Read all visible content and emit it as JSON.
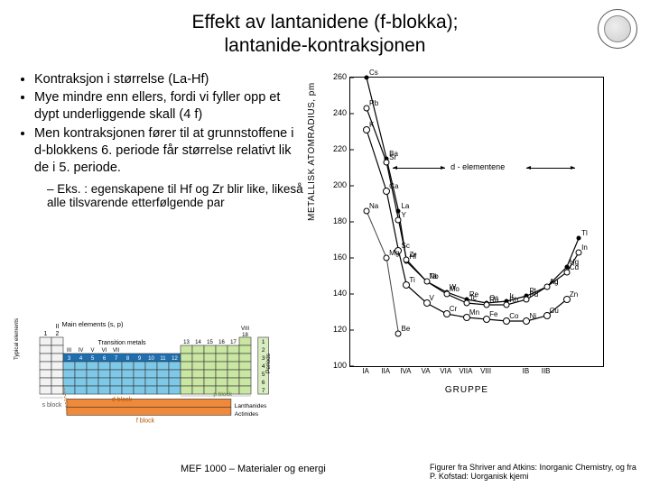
{
  "title_line1": "Effekt av lantanidene (f-blokka);",
  "title_line2": "lantanide-kontraksjonen",
  "bullets": [
    "Kontraksjon i størrelse (La-Hf)",
    "Mye mindre enn ellers, fordi vi fyller opp et dypt underliggende skall (4 f)",
    "Men kontraksjonen fører til at grunnstoffene i d-blokkens 6. periode får størrelse relativt lik de i 5. periode."
  ],
  "sub_bullet": "Eks. : egenskapene til Hf og Zr blir like, likeså alle tilsvarende etterfølgende par",
  "chart": {
    "ylabel": "METALLISK ATOMRADIUS, pm",
    "xlabel": "GRUPPE",
    "ymin": 100,
    "ymax": 260,
    "ytick_step": 20,
    "xticks": [
      "IA",
      "IIA",
      "IVA",
      "VA",
      "VIA",
      "VIIA",
      "VIII",
      "",
      "IB",
      "IIB"
    ],
    "d_element_label": "d - elementene",
    "series": [
      {
        "name": "period6",
        "style": "filled",
        "points": [
          {
            "x": 0,
            "y": 260,
            "label": "Cs"
          },
          {
            "x": 1,
            "y": 215,
            "label": "Ba"
          },
          {
            "x": 1.6,
            "y": 186,
            "label": "La"
          },
          {
            "x": 2,
            "y": 158,
            "label": "Hf"
          },
          {
            "x": 3,
            "y": 147,
            "label": "Ta"
          },
          {
            "x": 4,
            "y": 141,
            "label": "W"
          },
          {
            "x": 5,
            "y": 137,
            "label": "Re"
          },
          {
            "x": 6,
            "y": 135,
            "label": "Os"
          },
          {
            "x": 7,
            "y": 136,
            "label": "Ir"
          },
          {
            "x": 8,
            "y": 139,
            "label": "Pt"
          },
          {
            "x": 9,
            "y": 144,
            "label": "Au"
          },
          {
            "x": 10,
            "y": 155,
            "label": "Hg"
          },
          {
            "x": 10.6,
            "y": 171,
            "label": "Tl"
          }
        ]
      },
      {
        "name": "period5",
        "style": "open",
        "points": [
          {
            "x": 0,
            "y": 243,
            "label": "Rb"
          },
          {
            "x": 1,
            "y": 213,
            "label": "Sr"
          },
          {
            "x": 1.6,
            "y": 181,
            "label": "Y"
          },
          {
            "x": 2,
            "y": 159,
            "label": "Zr"
          },
          {
            "x": 3,
            "y": 147,
            "label": "Nb"
          },
          {
            "x": 4,
            "y": 140,
            "label": "Mo"
          },
          {
            "x": 5,
            "y": 135,
            "label": "Tc"
          },
          {
            "x": 6,
            "y": 134,
            "label": "Ru"
          },
          {
            "x": 7,
            "y": 134,
            "label": "Rh"
          },
          {
            "x": 8,
            "y": 137,
            "label": "Pd"
          },
          {
            "x": 9,
            "y": 144,
            "label": "Ag"
          },
          {
            "x": 10,
            "y": 152,
            "label": "Cd"
          },
          {
            "x": 10.6,
            "y": 163,
            "label": "In"
          }
        ]
      },
      {
        "name": "period4",
        "style": "open-big",
        "points": [
          {
            "x": 0,
            "y": 231,
            "label": "K"
          },
          {
            "x": 1,
            "y": 197,
            "label": "Ca"
          },
          {
            "x": 1.6,
            "y": 164,
            "label": "Sc"
          },
          {
            "x": 2,
            "y": 145,
            "label": "Ti"
          },
          {
            "x": 3,
            "y": 135,
            "label": "V"
          },
          {
            "x": 4,
            "y": 129,
            "label": "Cr"
          },
          {
            "x": 5,
            "y": 127,
            "label": "Mn"
          },
          {
            "x": 6,
            "y": 126,
            "label": "Fe"
          },
          {
            "x": 7,
            "y": 125,
            "label": "Co"
          },
          {
            "x": 8,
            "y": 125,
            "label": "Ni"
          },
          {
            "x": 9,
            "y": 128,
            "label": "Cu"
          },
          {
            "x": 10,
            "y": 137,
            "label": "Zn"
          }
        ]
      },
      {
        "name": "period3",
        "style": "open-tri",
        "points": [
          {
            "x": 0,
            "y": 186,
            "label": "Na"
          },
          {
            "x": 1,
            "y": 160,
            "label": "Mg"
          },
          {
            "x": 1.6,
            "y": 118,
            "label": "Be"
          }
        ]
      }
    ]
  },
  "ptable": {
    "y_axis_label": "Typical\\nelements",
    "periods_label": "Periods",
    "main_header": "Main elements (s, p)",
    "trans_label": "Transition metals",
    "roman": [
      "III",
      "IV",
      "V",
      "VI",
      "VII"
    ],
    "d_numbers": [
      "3",
      "4",
      "5",
      "6",
      "7",
      "8",
      "9",
      "10",
      "11",
      "12"
    ],
    "group_nums": [
      "1",
      "2",
      "13",
      "14",
      "15",
      "16",
      "17"
    ],
    "group18": "VIII\\n18",
    "period_nums": [
      "1",
      "2",
      "3",
      "4",
      "5",
      "6",
      "7"
    ],
    "d_block": "d block",
    "s_block": "s block",
    "f_block": "f block",
    "p_block": "p block",
    "lanth": "Lanthanides",
    "act": "Actinides",
    "colors": {
      "s": "#f2f2f2",
      "p": "#c9e6a3",
      "d": "#7fc9e8",
      "d_header": "#1f6fb0",
      "f": "#f08a3a",
      "border": "#333333"
    }
  },
  "footer_center": "MEF 1000 – Materialer og energi",
  "footer_right": "Figurer fra Shriver and Atkins: Inorganic Chemistry, og fra P. Kofstad: Uorganisk kjemi"
}
